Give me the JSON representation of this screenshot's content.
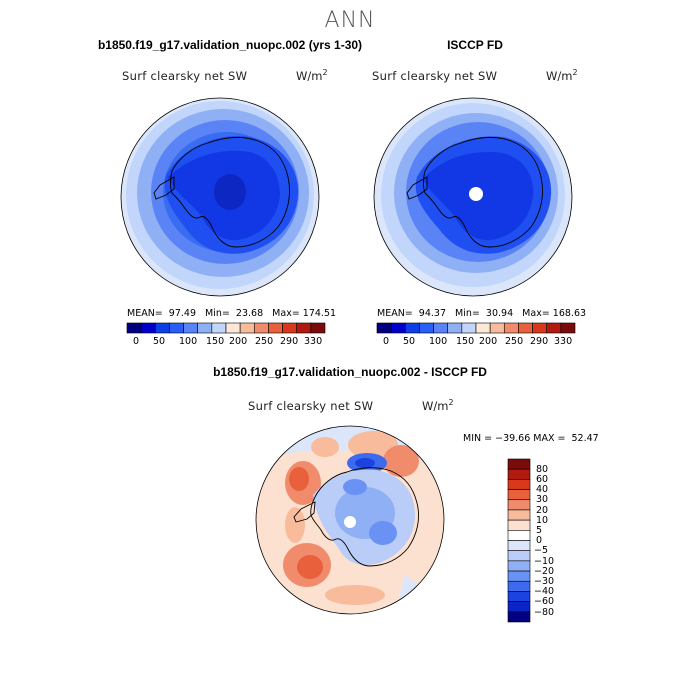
{
  "season": "ANN",
  "colors": {
    "abs": [
      "#000080",
      "#0000cd",
      "#0e3fe6",
      "#2a5ff5",
      "#5a84f5",
      "#8fb0f5",
      "#c2d6fb",
      "#fde7d8",
      "#f8bc9d",
      "#f08c6c",
      "#e9603c",
      "#d9391b",
      "#b01a0f",
      "#7a0b0b"
    ],
    "diff": [
      "#7a0b0b",
      "#b01a0f",
      "#d9391b",
      "#e9603c",
      "#f08c6c",
      "#f8bc9d",
      "#fde1d0",
      "#ffffff",
      "#dbe6fb",
      "#b9cdf8",
      "#8fb0f5",
      "#6a92f5",
      "#3e6af0",
      "#1a43e0",
      "#0b24c8",
      "#000080"
    ]
  },
  "panels": [
    {
      "title": "b1850.f19_g17.validation_nuopc.002 (yrs 1-30)",
      "variable": "Surf clearsky net SW",
      "units_base": "W/m",
      "units_exp": "2",
      "stats": "MEAN=  97.49   Min=  23.68   Max= 174.51",
      "colorbar_labels": [
        "0",
        "50",
        "100",
        "150",
        "200",
        "250",
        "290",
        "330"
      ]
    },
    {
      "title": "ISCCP FD",
      "variable": "Surf clearsky net SW",
      "units_base": "W/m",
      "units_exp": "2",
      "stats": "MEAN=  94.37   Min=  30.94   Max= 168.63",
      "colorbar_labels": [
        "0",
        "50",
        "100",
        "150",
        "200",
        "250",
        "290",
        "330"
      ]
    }
  ],
  "diff_panel": {
    "title": "b1850.f19_g17.validation_nuopc.002 - ISCCP FD",
    "variable": "Surf clearsky net SW",
    "units_base": "W/m",
    "units_exp": "2",
    "stats": "MIN = −39.66 MAX =  52.47",
    "colorbar_labels": [
      "80",
      "60",
      "40",
      "30",
      "20",
      "10",
      "5",
      "0",
      "−5",
      "−10",
      "−20",
      "−30",
      "−40",
      "−60",
      "−80"
    ]
  }
}
